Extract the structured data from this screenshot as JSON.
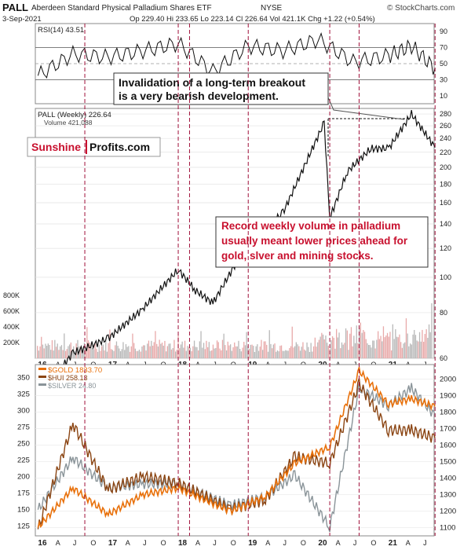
{
  "header": {
    "symbol": "PALL",
    "name": "Aberdeen Standard Physical Palladium Shares ETF",
    "exchange": "NYSE",
    "watermark": "© StockCharts.com",
    "date": "3-Sep-2021",
    "quote": "Op 229.40  Hi 233.65  Lo 223.14  Cl 226.64  Vol 421.1K  Chg +1.22 (+0.54%)"
  },
  "rsi_panel": {
    "legend": "RSI(14) 43.51",
    "y_ticks": [
      "90",
      "70",
      "50",
      "30",
      "10"
    ]
  },
  "price_panel": {
    "legend_price": "PALL (Weekly) 226.64",
    "legend_volume": "Volume 421,088",
    "y_ticks": [
      "280",
      "260",
      "240",
      "220",
      "200",
      "180",
      "160",
      "140",
      "120",
      "100",
      "80",
      "60"
    ],
    "volume_ticks": [
      "800K",
      "600K",
      "400K",
      "200K"
    ]
  },
  "annotations": {
    "breakout_line1": "Invalidation of a long-term breakout",
    "breakout_line2": "is a very bearish development.",
    "volume_line1": "Record weekly volume in palladium",
    "volume_line2": "usually meant lower prices ahead for",
    "volume_line3": "gold, slver and mining stocks."
  },
  "logo": {
    "part1": "Sunshine",
    "part2": "Profits.com"
  },
  "x_axis_top": [
    "16",
    "A",
    "J",
    "O",
    "17",
    "A",
    "J",
    "O",
    "18",
    "A",
    "J",
    "O",
    "19",
    "A",
    "J",
    "O",
    "20",
    "A",
    "J",
    "O",
    "21",
    "A",
    "J"
  ],
  "x_axis_bottom": [
    "16",
    "A",
    "J",
    "O",
    "17",
    "A",
    "J",
    "O",
    "18",
    "A",
    "J",
    "O",
    "19",
    "A",
    "J",
    "O",
    "20",
    "A",
    "J",
    "O",
    "21",
    "A",
    "J"
  ],
  "lower_panel": {
    "legend_gold": "$GOLD 1833.70",
    "legend_hui": "$HUI 258.13",
    "legend_silver": "$SILVER 24.80",
    "left_ticks": [
      "350",
      "325",
      "300",
      "275",
      "250",
      "225",
      "200",
      "175",
      "150",
      "125"
    ],
    "right_ticks": [
      "2000",
      "1900",
      "1800",
      "1700",
      "1600",
      "1500",
      "1400",
      "1300",
      "1200",
      "1100"
    ]
  },
  "colors": {
    "gold": "#e8700a",
    "hui": "#8b4513",
    "silver": "#8a9499",
    "marker": "#a0103a",
    "logo_red": "#c8102e"
  },
  "chart_data": [
    {
      "type": "line",
      "name": "RSI(14)",
      "y_range": [
        0,
        100
      ],
      "x": [
        "2016-01",
        "2016-07",
        "2017-01",
        "2017-07",
        "2018-01",
        "2018-07",
        "2019-01",
        "2019-07",
        "2020-01",
        "2020-07",
        "2021-01",
        "2021-05",
        "2021-09"
      ],
      "values": [
        35,
        62,
        58,
        66,
        75,
        40,
        72,
        66,
        80,
        52,
        60,
        72,
        43.51
      ]
    },
    {
      "type": "line",
      "name": "PALL (Weekly)",
      "y_range": [
        60,
        290
      ],
      "x": [
        "2016-01",
        "2016-07",
        "2017-01",
        "2017-07",
        "2018-01",
        "2018-04",
        "2018-07",
        "2019-01",
        "2019-07",
        "2020-02",
        "2020-03",
        "2020-06",
        "2020-10",
        "2021-01",
        "2021-05",
        "2021-09"
      ],
      "values": [
        47,
        62,
        68,
        82,
        105,
        92,
        85,
        125,
        150,
        265,
        145,
        195,
        225,
        225,
        280,
        226.64
      ],
      "volume_peak_week": "2021-09",
      "volume_ticks_k": [
        200,
        400,
        600,
        800
      ]
    },
    {
      "type": "line",
      "series": [
        {
          "name": "$GOLD 1833.70",
          "values": [
            1100,
            1340,
            1180,
            1300,
            1340,
            1200,
            1290,
            1490,
            1590,
            2050,
            1850,
            1880,
            1833.7
          ]
        },
        {
          "name": "$HUI 258.13",
          "values": [
            120,
            280,
            180,
            200,
            190,
            150,
            165,
            230,
            220,
            340,
            270,
            270,
            258.13
          ]
        },
        {
          "name": "$SILVER 24.80",
          "values": [
            14,
            20,
            16.5,
            17,
            17,
            14.5,
            15.5,
            18,
            12,
            28,
            26,
            28,
            24.8
          ]
        }
      ],
      "x": [
        "2016-01",
        "2016-07",
        "2017-01",
        "2017-07",
        "2018-01",
        "2018-10",
        "2019-04",
        "2019-09",
        "2020-03",
        "2020-08",
        "2021-01",
        "2021-05",
        "2021-09"
      ]
    }
  ]
}
